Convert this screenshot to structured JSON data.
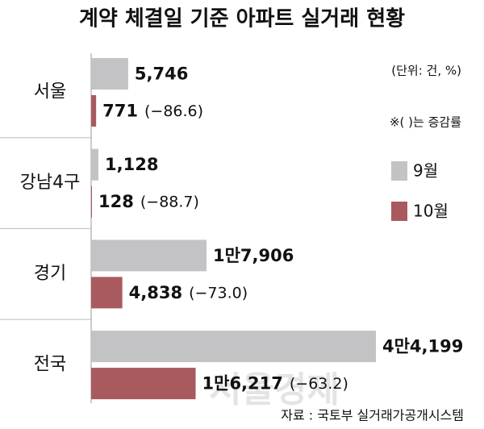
{
  "chart_data": {
    "type": "bar",
    "orientation": "horizontal",
    "title": "계약 체결일 기준 아파트 실거래 현황",
    "unit_note": "(단위: 건, %)",
    "change_note": "※(    )는 증감률",
    "source": "자료 : 국토부 실거래가공개시스템",
    "watermark": "서울경제",
    "categories": [
      "서울",
      "강남4구",
      "경기",
      "전국"
    ],
    "series": [
      {
        "name": "9월",
        "color": "#c3c3c6",
        "values": [
          5746,
          1128,
          17906,
          44199
        ],
        "value_labels": [
          "5,746",
          "1,128",
          "1만7,906",
          "4만4,199"
        ]
      },
      {
        "name": "10월",
        "color": "#a95a5f",
        "values": [
          771,
          128,
          4838,
          16217
        ],
        "value_labels": [
          "771",
          "128",
          "4,838",
          "1만6,217"
        ],
        "changes": [
          -86.6,
          -88.7,
          -73.0,
          -63.2
        ],
        "change_labels": [
          "(−86.6)",
          "(−88.7)",
          "(−73.0)",
          "(−63.2)"
        ]
      }
    ]
  }
}
